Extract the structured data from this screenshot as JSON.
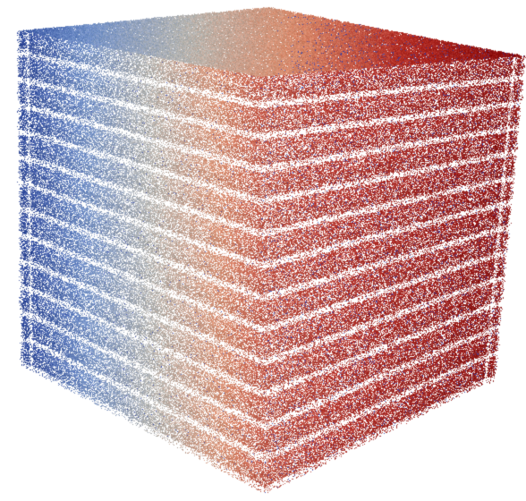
{
  "scene": {
    "subject": "point-cloud-cube",
    "background_color": "#ffffff",
    "colormap": {
      "name": "cool-warm",
      "stops": [
        "#1f3a93",
        "#6f8fc8",
        "#b8b6b0",
        "#d98a6a",
        "#b22a22",
        "#8a0a0a"
      ]
    },
    "visible_faces": [
      "top",
      "left-front",
      "right-front"
    ],
    "layer_count": 13,
    "speckle_color": "#2b3fb0"
  }
}
